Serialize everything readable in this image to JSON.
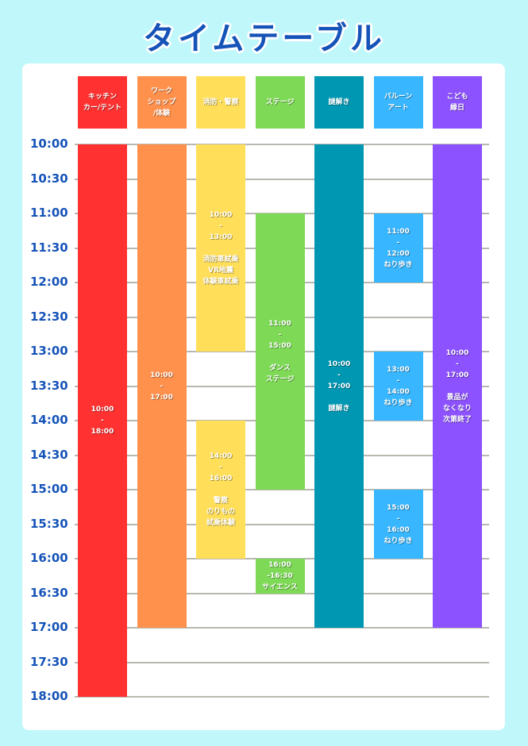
{
  "title": "タイムテーブル",
  "colors": {
    "background": "#bff7fb",
    "title": "#1553b8",
    "time_label": "#1553b8",
    "gridline": "#b8b8b0"
  },
  "times": [
    "10:00",
    "10:30",
    "11:00",
    "11:30",
    "12:00",
    "12:30",
    "13:00",
    "13:30",
    "14:00",
    "14:30",
    "15:00",
    "15:30",
    "16:00",
    "16:30",
    "17:00",
    "17:30",
    "18:00"
  ],
  "columns": [
    {
      "header": "キッチン\nカー/テント",
      "color": "#ff3131",
      "blocks": [
        {
          "start": "10:00",
          "end": "18:00",
          "text": "10:00\n-\n18:00"
        }
      ]
    },
    {
      "header": "ワーク\nショップ\n/体験",
      "color": "#ff914d",
      "blocks": [
        {
          "start": "10:00",
          "end": "17:00",
          "text": "10:00\n-\n17:00"
        }
      ]
    },
    {
      "header": "消防・警察",
      "color": "#ffde59",
      "blocks": [
        {
          "start": "10:00",
          "end": "13:00",
          "text": "10:00\n-\n13:00\n\n消防車試乗\nVR地震\n体験車試乗"
        },
        {
          "start": "14:00",
          "end": "16:00",
          "text": "14:00\n-\n16:00\n\n警察\nのりもの\n試乗体験"
        }
      ]
    },
    {
      "header": "ステージ",
      "color": "#7ed957",
      "blocks": [
        {
          "start": "11:00",
          "end": "15:00",
          "text": "11:00\n-\n15:00\n\nダンス\nステージ"
        },
        {
          "start": "16:00",
          "end": "16:30",
          "text": "16:00\n-16:30\nサイエンス"
        }
      ]
    },
    {
      "header": "謎解き",
      "color": "#0097b2",
      "blocks": [
        {
          "start": "10:00",
          "end": "17:00",
          "text": "10:00\n-\n17:00\n\n謎解き"
        }
      ]
    },
    {
      "header": "バルーン\nアート",
      "color": "#38b6ff",
      "blocks": [
        {
          "start": "11:00",
          "end": "12:00",
          "text": "11:00\n-\n12:00\nねり歩き"
        },
        {
          "start": "13:00",
          "end": "14:00",
          "text": "13:00\n-\n14:00\nねり歩き"
        },
        {
          "start": "15:00",
          "end": "16:00",
          "text": "15:00\n-\n16:00\nねり歩き"
        }
      ]
    },
    {
      "header": "こども\n縁日",
      "color": "#8c52ff",
      "blocks": [
        {
          "start": "10:00",
          "end": "17:00",
          "text": "10:00\n-\n17:00\n\n景品が\nなくなり\n次第終了"
        }
      ]
    }
  ]
}
